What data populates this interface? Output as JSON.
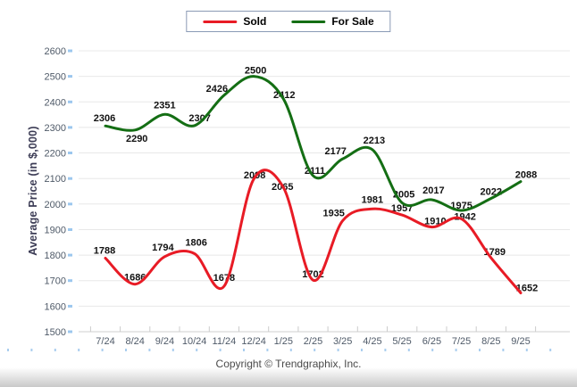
{
  "footer": {
    "copyright": "Copyright © Trendgraphix, Inc."
  },
  "chart_data": {
    "type": "line",
    "title": "",
    "categories": [
      "7/24",
      "8/24",
      "9/24",
      "10/24",
      "11/24",
      "12/24",
      "1/25",
      "2/25",
      "3/25",
      "4/25",
      "5/25",
      "6/25",
      "7/25",
      "8/25",
      "9/25"
    ],
    "series": [
      {
        "name": "Sold",
        "color": "#e81b25",
        "values": [
          1788,
          1686,
          1794,
          1806,
          1678,
          2098,
          2065,
          1702,
          1935,
          1981,
          1957,
          1910,
          1942,
          1789,
          1652
        ],
        "label_offsets": [
          [
            -1,
            -5
          ],
          [
            0,
            -4
          ],
          [
            -2,
            -7
          ],
          [
            2,
            -9
          ],
          [
            0,
            -6
          ],
          [
            1,
            -1
          ],
          [
            -1,
            3
          ],
          [
            0,
            -3
          ],
          [
            -10,
            -5
          ],
          [
            0,
            -7
          ],
          [
            0,
            -4
          ],
          [
            4,
            -3
          ],
          [
            4,
            1
          ],
          [
            4,
            -3
          ],
          [
            7,
            -2
          ]
        ]
      },
      {
        "name": "For Sale",
        "color": "#146e14",
        "values": [
          2306,
          2290,
          2351,
          2307,
          2426,
          2500,
          2412,
          2111,
          2177,
          2213,
          2005,
          2017,
          1975,
          2022,
          2088
        ],
        "label_offsets": [
          [
            -1,
            -5
          ],
          [
            2,
            13
          ],
          [
            0,
            -7
          ],
          [
            6,
            -5
          ],
          [
            -8,
            -4
          ],
          [
            2,
            -3
          ],
          [
            1,
            -1
          ],
          [
            2,
            -2
          ],
          [
            -8,
            -5
          ],
          [
            2,
            -7
          ],
          [
            2,
            -6
          ],
          [
            2,
            -7
          ],
          [
            0,
            -2
          ],
          [
            0,
            -4
          ],
          [
            6,
            -4
          ]
        ]
      }
    ],
    "xlabel": "",
    "ylabel": "Average Price (in $,000)",
    "ylim": [
      1500,
      2600
    ],
    "y_tick_step": 100,
    "grid": true,
    "legend_position": "top-center",
    "smooth": true,
    "grid_color": "#e8e8e8",
    "axis_line_color": "#cfcfcf",
    "y_tick_marker_color": "#9cc7ee"
  }
}
